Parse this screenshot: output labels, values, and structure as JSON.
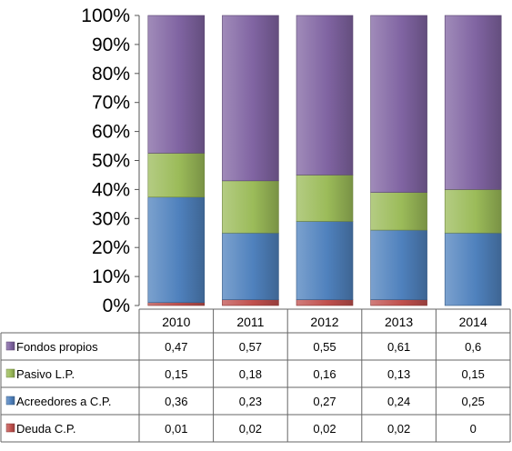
{
  "chart_data": {
    "type": "bar",
    "stacked": true,
    "percent": true,
    "categories": [
      "2010",
      "2011",
      "2012",
      "2013",
      "2014"
    ],
    "series": [
      {
        "name": "Deuda C.P.",
        "values": [
          "0,01",
          "0,02",
          "0,02",
          "0,02",
          "0"
        ],
        "numeric": [
          0.01,
          0.02,
          0.02,
          0.02,
          0.0
        ],
        "color": "#c0504d"
      },
      {
        "name": "Acreedores a C.P.",
        "values": [
          "0,36",
          "0,23",
          "0,27",
          "0,24",
          "0,25"
        ],
        "numeric": [
          0.36,
          0.23,
          0.27,
          0.24,
          0.25
        ],
        "color": "#4f81bd"
      },
      {
        "name": "Pasivo L.P.",
        "values": [
          "0,15",
          "0,18",
          "0,16",
          "0,13",
          "0,15"
        ],
        "numeric": [
          0.15,
          0.18,
          0.16,
          0.13,
          0.15
        ],
        "color": "#9bbb59"
      },
      {
        "name": "Fondos propios",
        "values": [
          "0,47",
          "0,57",
          "0,55",
          "0,61",
          "0,6"
        ],
        "numeric": [
          0.47,
          0.57,
          0.55,
          0.61,
          0.6
        ],
        "color": "#8064a2"
      }
    ],
    "table_row_order": [
      "Fondos propios",
      "Pasivo L.P.",
      "Acreedores a C.P.",
      "Deuda C.P."
    ],
    "y_ticks": [
      "0%",
      "10%",
      "20%",
      "30%",
      "40%",
      "50%",
      "60%",
      "70%",
      "80%",
      "90%",
      "100%"
    ],
    "ylim": [
      0,
      1
    ],
    "grid": false,
    "legend": "data-table",
    "title": "",
    "xlabel": "",
    "ylabel": ""
  }
}
